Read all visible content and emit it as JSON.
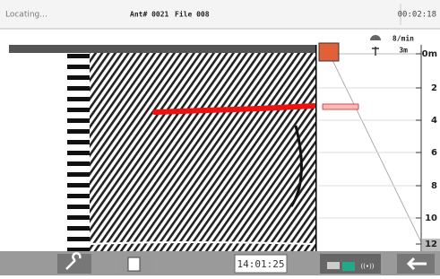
{
  "header": {
    "status": "Locating...",
    "antenna": "Ant# 0021",
    "file": "File 008",
    "timer": "00:02:18"
  },
  "settings": {
    "rate": "8/min",
    "range": "3m"
  },
  "depth_axis": {
    "labels": [
      "0m",
      "2",
      "4",
      "6",
      "8",
      "10",
      "12"
    ]
  },
  "footer": {
    "clock": "14:01:25"
  }
}
